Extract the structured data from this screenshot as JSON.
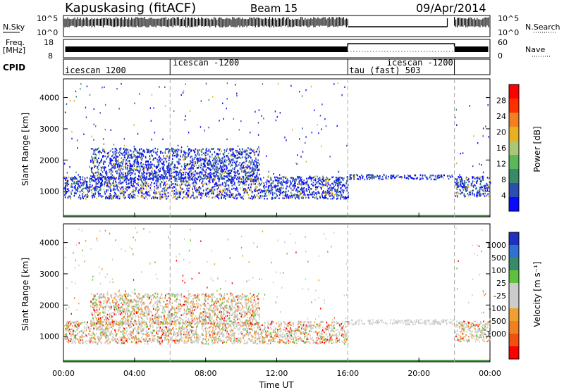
{
  "chart_data": {
    "type": "heatmap",
    "header": {
      "radar": "Kapuskasing (fitACF)",
      "beam": "Beam 15",
      "date": "09/Apr/2014"
    },
    "x_axis": {
      "label": "Time UT",
      "range": [
        "00:00",
        "24:00"
      ],
      "ticks": [
        "00:00",
        "04:00",
        "08:00",
        "12:00",
        "16:00",
        "20:00",
        "00:00"
      ],
      "tick_hours": [
        0,
        4,
        8,
        12,
        16,
        20,
        24
      ]
    },
    "panels": {
      "nsky": {
        "left_label": "N.Sky",
        "left_ticks": [
          "10^5",
          "10^0"
        ],
        "right_label": "N.Search",
        "right_ticks": [
          "10^5",
          "10^0"
        ]
      },
      "freq": {
        "left_label_1": "Freq.",
        "left_label_2": "[MHz]",
        "left_ticks": [
          "18",
          "8"
        ],
        "right_label": "Nave",
        "right_ticks": [
          "60",
          "0"
        ]
      },
      "cpid": {
        "label": "CPID",
        "segments": [
          {
            "start": 0,
            "end": 6,
            "name": "icescan 1200"
          },
          {
            "start": 6,
            "end": 16,
            "name": "icescan -1200"
          },
          {
            "start": 16,
            "end": 22,
            "name": "tau (fast) 503"
          },
          {
            "start": 18,
            "end": 22,
            "name": "icescan -1200"
          }
        ]
      }
    },
    "power": {
      "ylabel": "Slant Range [km]",
      "yticks": [
        1000,
        2000,
        3000,
        4000
      ],
      "ylim": [
        180,
        4600
      ],
      "colorbar_label": "Power [dB]",
      "colorbar_ticks": [
        "4",
        "8",
        "12",
        "16",
        "20",
        "24",
        "28"
      ],
      "colors": [
        "#0a0aff",
        "#2b4fb0",
        "#3a8a6a",
        "#5ab85a",
        "#a8c878",
        "#e8b020",
        "#f08020",
        "#ff3000",
        "#ff0000"
      ]
    },
    "velocity": {
      "ylabel": "Slant Range [km]",
      "yticks": [
        1000,
        2000,
        3000,
        4000
      ],
      "ylim": [
        180,
        4600
      ],
      "colorbar_label": "Velocity [m s⁻¹]",
      "colorbar_ticks": [
        "1000",
        "500",
        "100",
        "25",
        "-25",
        "-100",
        "-500",
        "-1000"
      ],
      "colors": [
        "#2030c0",
        "#3070d0",
        "#3a8a6a",
        "#60c040",
        "#cccccc",
        "#cccccc",
        "#f0a030",
        "#f08020",
        "#f05010",
        "#ff0000"
      ]
    },
    "scatter_regions": [
      {
        "t0": 0.0,
        "t1": 16.0,
        "r0": 780,
        "r1": 1500,
        "note": "dense band"
      },
      {
        "t0": 1.5,
        "t1": 11.0,
        "r0": 1400,
        "r1": 2400,
        "note": "arc"
      },
      {
        "t0": 16.0,
        "t1": 22.0,
        "r0": 1400,
        "r1": 1560,
        "note": "thin band"
      },
      {
        "t0": 22.0,
        "t1": 24.0,
        "r0": 850,
        "r1": 1500,
        "note": "dense band"
      }
    ]
  }
}
